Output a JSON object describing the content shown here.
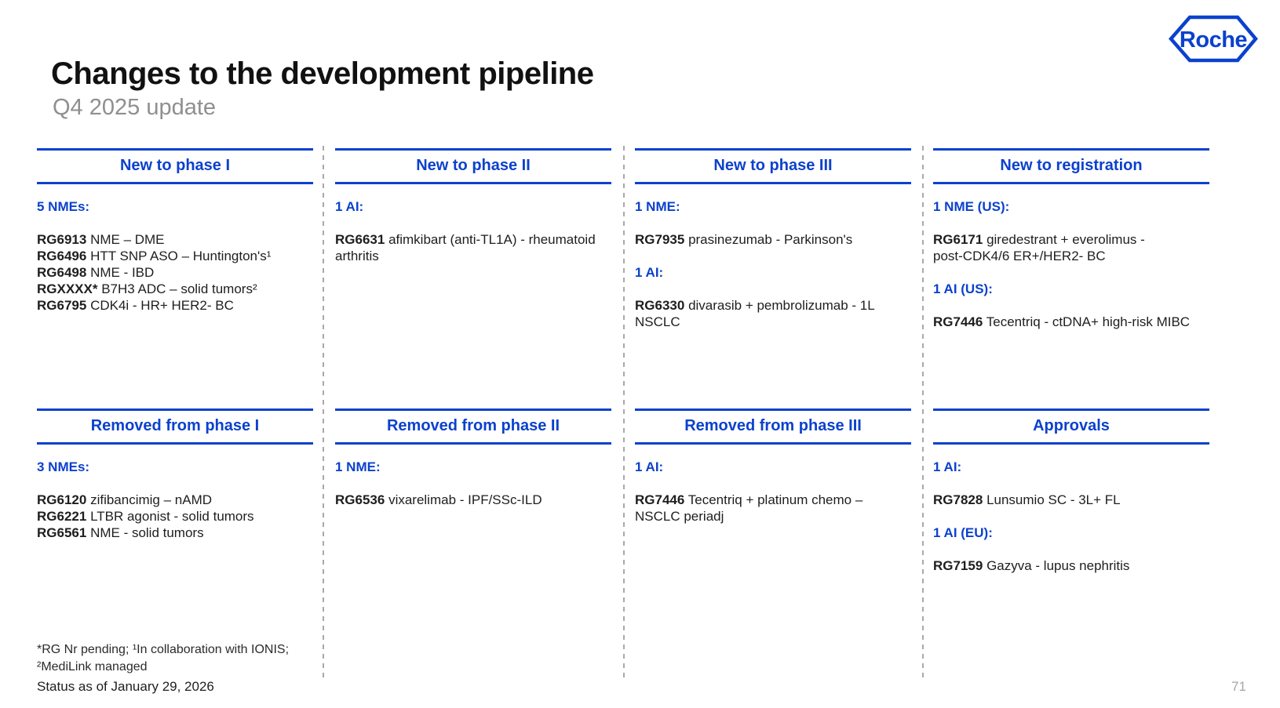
{
  "slide": {
    "title": "Changes to the development pipeline",
    "subtitle": "Q4 2025 update",
    "logo_text": "Roche",
    "footnote": "*RG Nr pending; ¹In collaboration with IONIS;\n²MediLink managed",
    "status": "Status as of January 29, 2026",
    "page_number": "71"
  },
  "colors": {
    "brand_blue": "#0B41CD",
    "body_text": "#1e1e1e",
    "subtitle_gray": "#8f8f8f",
    "divider_gray": "#a9a9a9"
  },
  "board": {
    "cells": [
      {
        "header": "New to phase I",
        "sections": [
          {
            "label": "5 NMEs:",
            "items": [
              {
                "code": "RG6913",
                "text": "NME – DME"
              },
              {
                "code": "RG6496",
                "text": "HTT SNP ASO – Huntington's¹"
              },
              {
                "code": "RG6498",
                "text": "NME - IBD"
              },
              {
                "code": "RGXXXX*",
                "text": "B7H3 ADC – solid tumors²"
              },
              {
                "code": "RG6795",
                "text": "CDK4i - HR+ HER2- BC"
              }
            ]
          }
        ]
      },
      {
        "header": "New to phase II",
        "sections": [
          {
            "label": "1 AI:",
            "items": [
              {
                "code": "RG6631",
                "text": "afimkibart (anti-TL1A) - rheumatoid\narthritis"
              }
            ]
          }
        ]
      },
      {
        "header": "New to phase III",
        "sections": [
          {
            "label": "1 NME:",
            "items": [
              {
                "code": "RG7935",
                "text": "prasinezumab - Parkinson's"
              }
            ]
          },
          {
            "label": "1 AI:",
            "items": [
              {
                "code": "RG6330",
                "text": "divarasib + pembrolizumab - 1L NSCLC"
              }
            ]
          }
        ]
      },
      {
        "header": "New to registration",
        "sections": [
          {
            "label": "1 NME (US):",
            "items": [
              {
                "code": "RG6171",
                "text": "giredestrant + everolimus -\npost-CDK4/6 ER+/HER2- BC"
              }
            ]
          },
          {
            "label": "1 AI (US):",
            "items": [
              {
                "code": "RG7446",
                "text": "Tecentriq - ctDNA+ high-risk MIBC"
              }
            ]
          }
        ]
      },
      {
        "header": "Removed from phase I",
        "sections": [
          {
            "label": "3 NMEs:",
            "items": [
              {
                "code": "RG6120",
                "text": "zifibancimig – nAMD"
              },
              {
                "code": "RG6221",
                "text": "LTBR agonist - solid tumors"
              },
              {
                "code": "RG6561",
                "text": "NME - solid tumors"
              }
            ]
          }
        ]
      },
      {
        "header": "Removed from phase II",
        "sections": [
          {
            "label": "1 NME:",
            "items": [
              {
                "code": "RG6536",
                "text": "vixarelimab - IPF/SSc-ILD"
              }
            ]
          }
        ]
      },
      {
        "header": "Removed from phase III",
        "sections": [
          {
            "label": "1 AI:",
            "items": [
              {
                "code": "RG7446",
                "text": "Tecentriq + platinum chemo –\nNSCLC periadj"
              }
            ]
          }
        ]
      },
      {
        "header": "Approvals",
        "sections": [
          {
            "label": "1 AI:",
            "items": [
              {
                "code": "RG7828",
                "text": "Lunsumio SC - 3L+ FL"
              }
            ]
          },
          {
            "label": "1 AI (EU):",
            "items": [
              {
                "code": "RG7159",
                "text": "Gazyva - lupus nephritis"
              }
            ]
          }
        ]
      }
    ]
  }
}
